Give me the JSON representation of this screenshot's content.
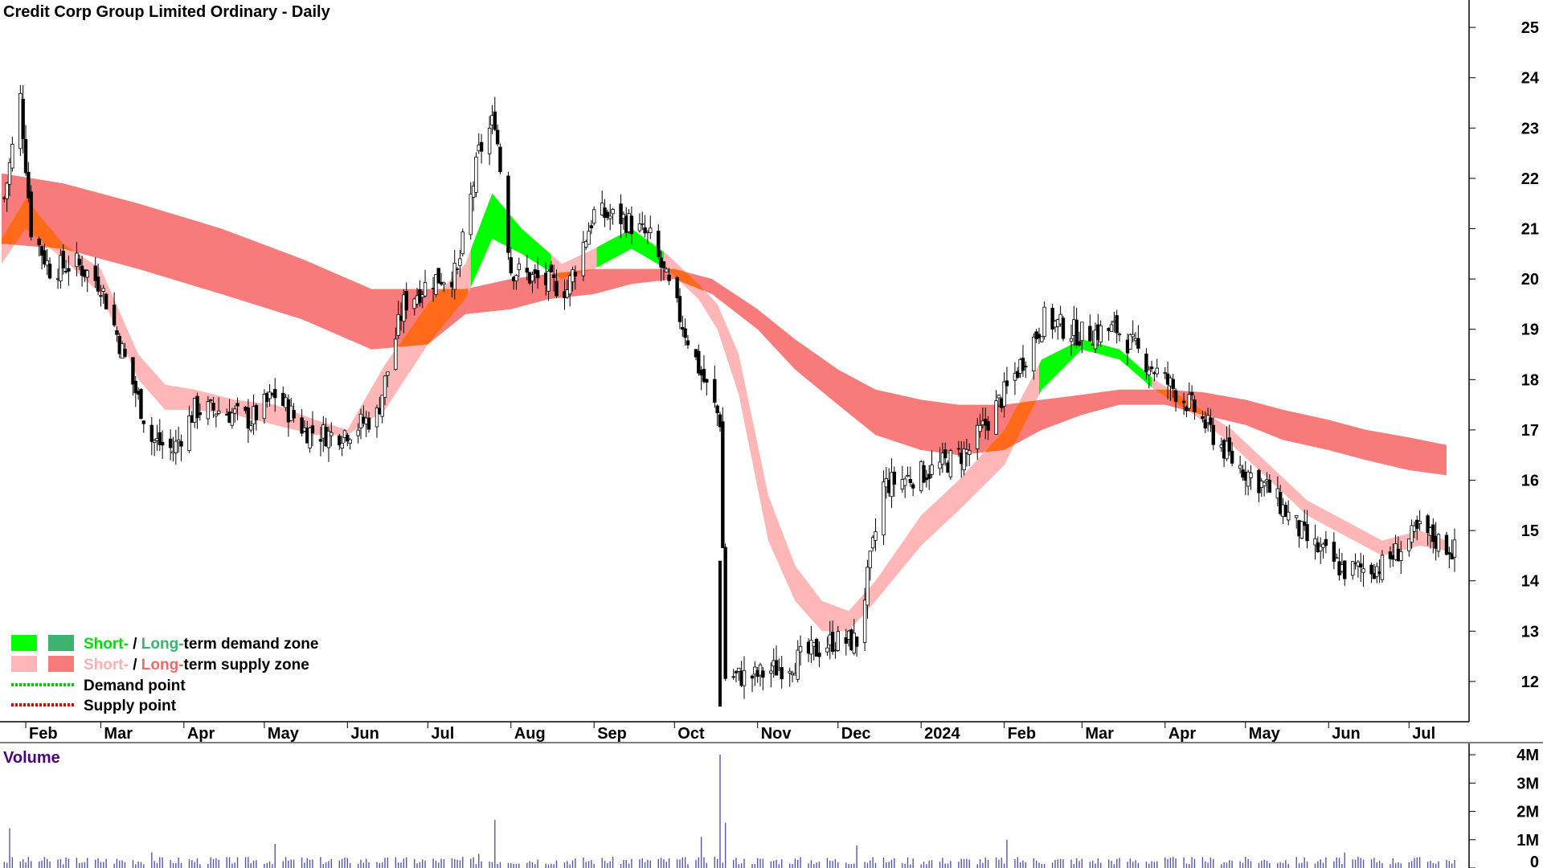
{
  "chart_data": {
    "type": "candlestick",
    "title": "Credit Corp Group Limited Ordinary - Daily",
    "price_axis": {
      "ticks": [
        12,
        13,
        14,
        15,
        16,
        17,
        18,
        19,
        20,
        21,
        22,
        23,
        24,
        25
      ],
      "range": [
        11.3,
        25.5
      ]
    },
    "x_ticks": [
      "Feb",
      "Mar",
      "Apr",
      "May",
      "Jun",
      "Jul",
      "Aug",
      "Sep",
      "Oct",
      "Nov",
      "Dec",
      "2024",
      "Feb",
      "Mar",
      "Apr",
      "May",
      "Jun",
      "Jul"
    ],
    "x_tick_dates": [
      "2023-02-01",
      "2023-03-01",
      "2023-04-01",
      "2023-05-01",
      "2023-06-01",
      "2023-07-01",
      "2023-08-01",
      "2023-09-01",
      "2023-10-01",
      "2023-11-01",
      "2023-12-01",
      "2024-01-01",
      "2024-02-01",
      "2024-03-01",
      "2024-04-01",
      "2024-05-01",
      "2024-06-01",
      "2024-07-01"
    ],
    "date_range": [
      "2023-01-23",
      "2024-07-18"
    ],
    "price_series": {
      "name": "Close",
      "dates": [
        "2023-01-24",
        "2023-01-30",
        "2023-02-03",
        "2023-02-10",
        "2023-02-20",
        "2023-03-01",
        "2023-03-10",
        "2023-03-20",
        "2023-03-28",
        "2023-04-05",
        "2023-04-14",
        "2023-04-26",
        "2023-05-05",
        "2023-05-16",
        "2023-05-26",
        "2023-06-02",
        "2023-06-12",
        "2023-06-22",
        "2023-07-03",
        "2023-07-12",
        "2023-07-20",
        "2023-07-26",
        "2023-08-01",
        "2023-08-10",
        "2023-08-22",
        "2023-09-01",
        "2023-09-12",
        "2023-09-22",
        "2023-10-02",
        "2023-10-11",
        "2023-10-18",
        "2023-10-20",
        "2023-10-31",
        "2023-11-15",
        "2023-11-29",
        "2023-12-08",
        "2023-12-18",
        "2024-01-05",
        "2024-01-19",
        "2024-02-02",
        "2024-02-16",
        "2024-02-29",
        "2024-03-14",
        "2024-03-28",
        "2024-04-12",
        "2024-04-26",
        "2024-05-10",
        "2024-05-24",
        "2024-06-07",
        "2024-06-21",
        "2024-07-05",
        "2024-07-18"
      ],
      "values": [
        21.6,
        23.6,
        21.0,
        20.2,
        20.3,
        19.9,
        18.4,
        16.8,
        16.6,
        17.4,
        17.4,
        17.2,
        17.7,
        17.0,
        16.9,
        17.0,
        17.3,
        19.5,
        20.0,
        20.1,
        22.5,
        23.2,
        20.2,
        20.0,
        19.8,
        21.3,
        21.2,
        20.8,
        19.4,
        18.1,
        17.2,
        12.1,
        12.1,
        12.4,
        12.8,
        12.8,
        15.9,
        16.2,
        16.6,
        17.8,
        19.2,
        18.9,
        19.0,
        18.2,
        17.4,
        16.4,
        15.8,
        14.8,
        14.2,
        14.3,
        15.0,
        14.6
      ]
    },
    "bands": [
      {
        "name": "Short-term demand zone",
        "color": "#00ff00"
      },
      {
        "name": "Long-term demand zone",
        "color": "#3cb371"
      },
      {
        "name": "Short-term supply zone",
        "color": "#ffb6b6"
      },
      {
        "name": "Long-term supply zone",
        "color": "#f77b7b"
      }
    ],
    "mixed_color": "#ff6a1a",
    "long_band": {
      "dates": [
        "2023-01-23",
        "2023-02-15",
        "2023-03-15",
        "2023-04-15",
        "2023-05-15",
        "2023-06-10",
        "2023-07-01",
        "2023-07-15",
        "2023-08-01",
        "2023-08-15",
        "2023-09-01",
        "2023-09-15",
        "2023-10-01",
        "2023-10-15",
        "2023-11-01",
        "2023-11-15",
        "2023-12-01",
        "2023-12-15",
        "2024-01-01",
        "2024-01-15",
        "2024-02-01",
        "2024-02-15",
        "2024-03-01",
        "2024-03-15",
        "2024-04-01",
        "2024-04-15",
        "2024-05-01",
        "2024-05-15",
        "2024-06-01",
        "2024-06-15",
        "2024-07-01",
        "2024-07-15"
      ],
      "upper": [
        22.1,
        21.9,
        21.5,
        21.0,
        20.4,
        19.8,
        19.8,
        19.8,
        20.0,
        20.1,
        20.2,
        20.2,
        20.2,
        20.0,
        19.4,
        18.8,
        18.2,
        17.8,
        17.6,
        17.5,
        17.5,
        17.6,
        17.7,
        17.8,
        17.8,
        17.75,
        17.6,
        17.4,
        17.2,
        17.0,
        16.85,
        16.7
      ],
      "lower": [
        20.7,
        20.6,
        20.2,
        19.7,
        19.2,
        18.6,
        18.7,
        19.3,
        19.4,
        19.6,
        19.7,
        19.9,
        20.0,
        19.7,
        19.0,
        18.2,
        17.5,
        16.9,
        16.6,
        16.5,
        16.6,
        17.0,
        17.3,
        17.5,
        17.5,
        17.3,
        17.1,
        16.8,
        16.6,
        16.4,
        16.2,
        16.1
      ]
    },
    "short_band": {
      "dates": [
        "2023-01-23",
        "2023-02-01",
        "2023-02-15",
        "2023-03-01",
        "2023-03-15",
        "2023-03-25",
        "2023-04-05",
        "2023-04-20",
        "2023-05-05",
        "2023-05-20",
        "2023-06-01",
        "2023-06-15",
        "2023-07-01",
        "2023-07-15",
        "2023-07-25",
        "2023-08-05",
        "2023-08-20",
        "2023-09-01",
        "2023-09-15",
        "2023-09-28",
        "2023-10-10",
        "2023-10-17",
        "2023-10-25",
        "2023-11-05",
        "2023-11-15",
        "2023-11-25",
        "2023-12-05",
        "2023-12-15",
        "2024-01-01",
        "2024-01-15",
        "2024-02-01",
        "2024-02-15",
        "2024-03-01",
        "2024-03-15",
        "2024-03-28",
        "2024-04-12",
        "2024-04-26",
        "2024-05-10",
        "2024-05-24",
        "2024-06-07",
        "2024-06-21",
        "2024-07-05",
        "2024-07-15"
      ],
      "upper": [
        20.8,
        21.6,
        20.7,
        20.2,
        18.5,
        17.9,
        17.8,
        17.6,
        17.5,
        17.2,
        17.0,
        18.3,
        19.5,
        20.3,
        21.7,
        21.0,
        20.3,
        20.6,
        21.0,
        20.5,
        19.9,
        19.5,
        18.5,
        15.7,
        14.3,
        13.6,
        13.4,
        14.0,
        15.3,
        16.0,
        17.0,
        18.4,
        18.8,
        18.6,
        18.0,
        17.5,
        17.0,
        16.3,
        15.6,
        15.2,
        14.8,
        15.0,
        14.8
      ],
      "lower": [
        20.3,
        21.0,
        20.4,
        19.7,
        18.0,
        17.4,
        17.4,
        17.3,
        17.1,
        16.9,
        16.9,
        17.4,
        18.7,
        19.6,
        20.8,
        20.5,
        20.0,
        20.2,
        20.6,
        20.2,
        19.6,
        19.0,
        17.7,
        14.8,
        13.6,
        13.0,
        13.0,
        13.6,
        14.7,
        15.4,
        16.3,
        17.8,
        18.6,
        18.4,
        17.8,
        17.3,
        16.7,
        16.0,
        15.3,
        14.9,
        14.5,
        14.7,
        14.6
      ]
    },
    "volume": {
      "label": "Volume",
      "ticks": [
        "0",
        "1M",
        "2M",
        "3M",
        "4M"
      ],
      "tick_values": [
        0,
        1000000,
        2000000,
        3000000,
        4000000
      ],
      "range": [
        0,
        4200000
      ],
      "spikes": [
        {
          "date": "2023-01-26",
          "value": 1400000
        },
        {
          "date": "2023-03-20",
          "value": 550000
        },
        {
          "date": "2023-05-05",
          "value": 850000
        },
        {
          "date": "2023-07-20",
          "value": 500000
        },
        {
          "date": "2023-07-26",
          "value": 1700000
        },
        {
          "date": "2023-10-11",
          "value": 1100000
        },
        {
          "date": "2023-10-18",
          "value": 4000000
        },
        {
          "date": "2023-10-20",
          "value": 1600000
        },
        {
          "date": "2023-12-08",
          "value": 800000
        },
        {
          "date": "2024-02-02",
          "value": 1000000
        },
        {
          "date": "2024-06-07",
          "value": 550000
        }
      ],
      "typical": 250000
    },
    "legend": {
      "rows": [
        {
          "short": "Short-",
          "sep": " / ",
          "long": "Long-",
          "rest": "term demand zone",
          "short_color": "#00dd00",
          "long_color": "#3cb371",
          "swatch1": "#00ff00",
          "swatch2": "#3cb371"
        },
        {
          "short": "Short-",
          "sep": " / ",
          "long": "Long-",
          "rest": "term supply zone",
          "short_color": "#ffb0b0",
          "long_color": "#f06a6a",
          "swatch1": "#ffb6b6",
          "swatch2": "#f77b7b"
        }
      ],
      "points": [
        {
          "label": "Demand point",
          "color": "#00cc00"
        },
        {
          "label": "Supply point",
          "color": "#dd0000"
        }
      ]
    }
  }
}
